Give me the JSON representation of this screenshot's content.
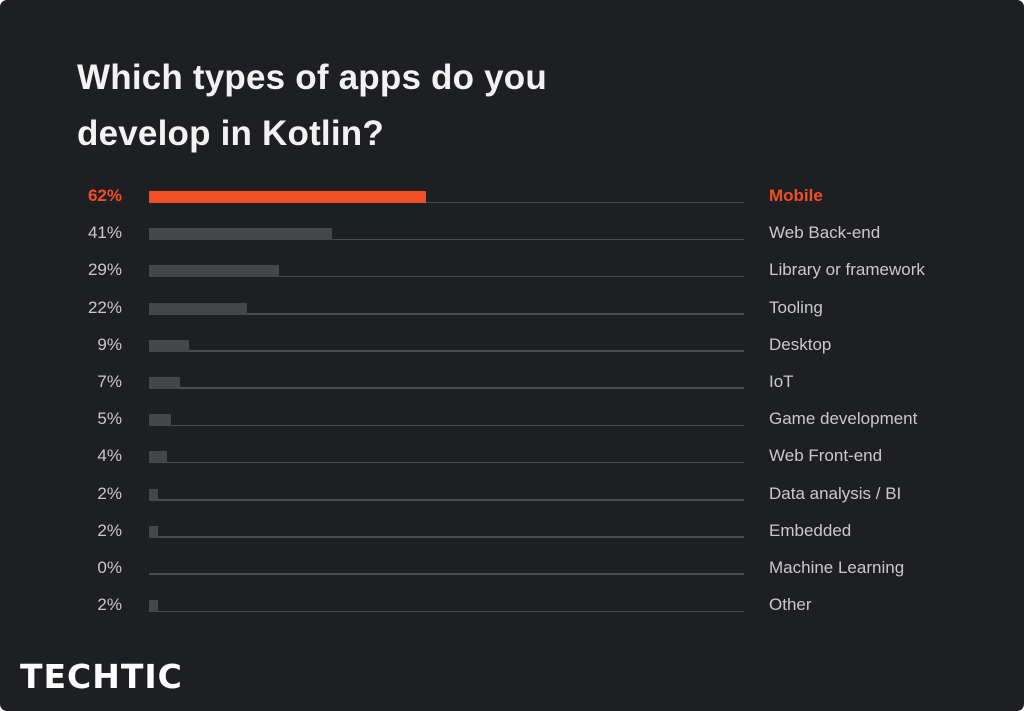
{
  "header": {
    "title": "Which types of apps do you develop in Kotlin?"
  },
  "branding": {
    "logo_text": "TECHTIC"
  },
  "colors": {
    "background": "#1e1f23",
    "highlight": "#f04f23",
    "bar": "#454649",
    "track": "#4a4b4f",
    "label": "#c9c9c9",
    "title": "#f2f2f2"
  },
  "chart_data": {
    "type": "bar",
    "orientation": "horizontal",
    "title": "Which types of apps do you develop in Kotlin?",
    "xlabel": "",
    "ylabel": "",
    "unit": "%",
    "scale_max": 133,
    "highlighted_category": "Mobile",
    "categories": [
      "Mobile",
      "Web Back-end",
      "Library or framework",
      "Tooling",
      "Desktop",
      "IoT",
      "Game development",
      "Web Front-end",
      "Data analysis / BI",
      "Embedded",
      "Machine Learning",
      "Other"
    ],
    "values": [
      62,
      41,
      29,
      22,
      9,
      7,
      5,
      4,
      2,
      2,
      0,
      2
    ],
    "value_labels": [
      "62%",
      "41%",
      "29%",
      "22%",
      "9%",
      "7%",
      "5%",
      "4%",
      "2%",
      "2%",
      "0%",
      "2%"
    ],
    "grid": false,
    "legend": null
  }
}
